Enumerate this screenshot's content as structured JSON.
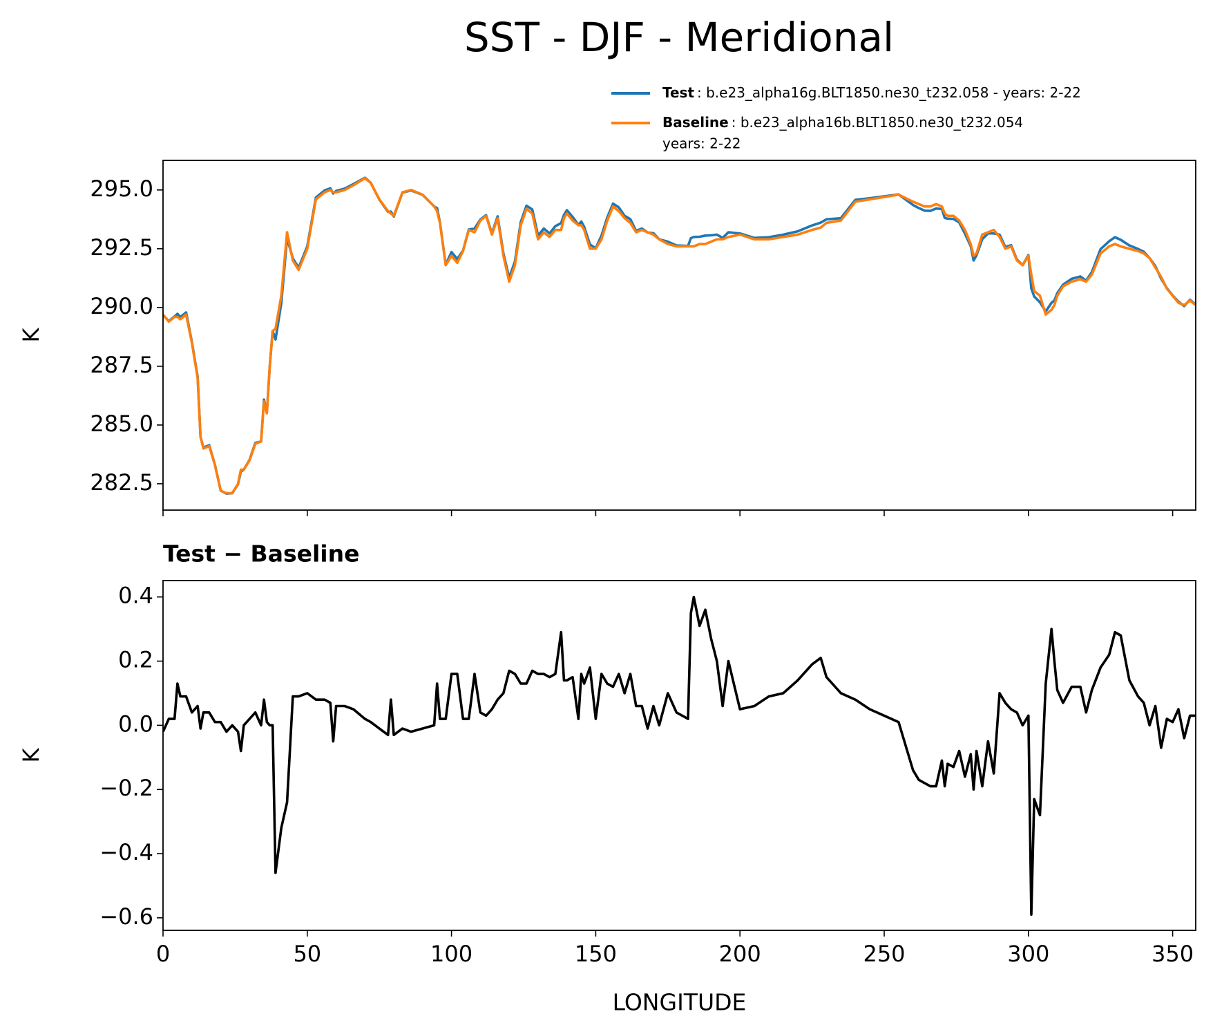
{
  "chart_data": [
    {
      "type": "line",
      "title": "SST - DJF - Meridional",
      "ylabel": "K",
      "xlim": [
        0,
        358
      ],
      "ylim": [
        281.38,
        296.26
      ],
      "yticks": [
        282.5,
        {
          "value": 285,
          "label": "285.0"
        },
        287.5,
        {
          "value": 290,
          "label": "290.0"
        },
        292.5,
        {
          "value": 295,
          "label": "295.0"
        }
      ],
      "x": [
        0,
        2,
        4,
        5,
        6,
        8,
        10,
        12,
        13,
        14,
        16,
        18,
        20,
        22,
        24,
        26,
        27,
        28,
        30,
        32,
        34,
        35,
        36,
        37,
        38,
        39,
        41,
        43,
        45,
        47,
        50,
        53,
        56,
        58,
        59,
        60,
        63,
        66,
        70,
        72,
        75,
        78,
        79,
        80,
        83,
        86,
        90,
        94,
        95,
        96,
        98,
        100,
        102,
        104,
        106,
        108,
        110,
        112,
        114,
        116,
        118,
        120,
        122,
        124,
        126,
        128,
        130,
        132,
        134,
        136,
        138,
        139,
        140,
        142,
        144,
        145,
        146,
        148,
        150,
        152,
        154,
        156,
        158,
        160,
        162,
        164,
        166,
        168,
        170,
        172,
        175,
        178,
        180,
        182,
        183,
        184,
        186,
        188,
        190,
        192,
        194,
        196,
        200,
        205,
        210,
        215,
        220,
        225,
        228,
        230,
        235,
        240,
        245,
        250,
        255,
        260,
        262,
        264,
        266,
        268,
        270,
        271,
        272,
        274,
        276,
        278,
        280,
        281,
        282,
        284,
        286,
        288,
        290,
        292,
        294,
        296,
        298,
        300,
        301,
        302,
        304,
        306,
        308,
        309,
        310,
        312,
        315,
        318,
        320,
        322,
        325,
        328,
        330,
        332,
        335,
        338,
        340,
        342,
        344,
        346,
        348,
        350,
        352,
        354,
        356,
        358
      ],
      "series": [
        {
          "name": "Test",
          "description": [
            ": b.e23_alpha16g.BLT1850.ne30_t232.058 - years: 2-22"
          ],
          "color": "#1f77b4",
          "values": [
            289.68,
            289.42,
            289.62,
            289.73,
            289.59,
            289.79,
            288.54,
            287.06,
            284.49,
            284.04,
            284.14,
            283.31,
            282.21,
            282.08,
            282.1,
            282.48,
            283.02,
            283.1,
            283.52,
            284.24,
            284.3,
            286.08,
            285.51,
            287.5,
            289.0,
            288.64,
            290.18,
            292.96,
            292.09,
            291.69,
            292.6,
            294.68,
            294.98,
            295.07,
            294.85,
            294.96,
            295.06,
            295.25,
            295.52,
            295.31,
            294.59,
            294.07,
            294.08,
            293.87,
            294.89,
            294.98,
            294.79,
            294.3,
            294.23,
            293.62,
            291.82,
            292.36,
            292.06,
            292.42,
            293.32,
            293.36,
            293.74,
            293.93,
            293.15,
            293.88,
            292.3,
            291.27,
            291.96,
            293.63,
            294.33,
            294.17,
            293.06,
            293.36,
            293.15,
            293.46,
            293.59,
            293.94,
            294.14,
            293.85,
            293.52,
            293.66,
            293.43,
            292.68,
            292.52,
            293.06,
            293.83,
            294.42,
            294.26,
            293.9,
            293.76,
            293.26,
            293.36,
            293.19,
            293.16,
            292.9,
            292.8,
            292.64,
            292.63,
            292.62,
            292.95,
            293.0,
            293.01,
            293.06,
            293.07,
            293.1,
            292.96,
            293.2,
            293.15,
            292.96,
            292.99,
            293.1,
            293.24,
            293.49,
            293.61,
            293.75,
            293.8,
            294.58,
            294.65,
            294.73,
            294.81,
            294.36,
            294.23,
            294.12,
            294.11,
            294.21,
            294.19,
            293.81,
            293.78,
            293.77,
            293.62,
            293.14,
            292.61,
            292.0,
            292.22,
            292.91,
            293.15,
            293.15,
            293.1,
            292.57,
            292.65,
            292.04,
            291.8,
            292.23,
            290.81,
            290.47,
            290.22,
            289.83,
            290.2,
            290.3,
            290.61,
            290.97,
            291.22,
            291.32,
            291.14,
            291.51,
            292.48,
            292.82,
            292.99,
            292.88,
            292.64,
            292.49,
            292.37,
            292.1,
            291.76,
            291.23,
            290.82,
            290.51,
            290.25,
            290.06,
            290.33,
            290.13
          ]
        },
        {
          "name": "Baseline",
          "description": [
            ": b.e23_alpha16b.BLT1850.ne30_t232.054",
            "years: 2-22"
          ],
          "color": "#ff7f0e",
          "values": [
            289.7,
            289.4,
            289.6,
            289.6,
            289.5,
            289.7,
            288.5,
            287,
            284.5,
            284,
            284.1,
            283.3,
            282.2,
            282.1,
            282.1,
            282.5,
            283.1,
            283.1,
            283.5,
            284.2,
            284.3,
            286,
            285.5,
            287.5,
            289,
            289.1,
            290.5,
            293.2,
            292,
            291.6,
            292.5,
            294.6,
            294.9,
            295,
            294.9,
            294.9,
            295,
            295.2,
            295.5,
            295.3,
            294.6,
            294.1,
            294.0,
            293.9,
            294.9,
            295,
            294.8,
            294.3,
            294.1,
            293.6,
            291.8,
            292.2,
            291.9,
            292.4,
            293.3,
            293.2,
            293.7,
            293.9,
            293.1,
            293.8,
            292.2,
            291.1,
            291.8,
            293.5,
            294.2,
            294.0,
            292.9,
            293.2,
            293.0,
            293.3,
            293.3,
            293.8,
            294.0,
            293.7,
            293.5,
            293.5,
            293.3,
            292.5,
            292.5,
            292.9,
            293.7,
            294.3,
            294.1,
            293.8,
            293.6,
            293.2,
            293.3,
            293.2,
            293.1,
            292.9,
            292.7,
            292.6,
            292.6,
            292.6,
            292.6,
            292.6,
            292.7,
            292.7,
            292.8,
            292.9,
            292.9,
            293.0,
            293.1,
            292.9,
            292.9,
            293.0,
            293.1,
            293.3,
            293.4,
            293.6,
            293.7,
            294.5,
            294.6,
            294.7,
            294.8,
            294.5,
            294.4,
            294.3,
            294.3,
            294.4,
            294.3,
            294.0,
            293.9,
            293.9,
            293.7,
            293.3,
            292.7,
            292.2,
            292.3,
            293.1,
            293.2,
            293.3,
            293.0,
            292.5,
            292.6,
            292.0,
            291.8,
            292.2,
            291.4,
            290.7,
            290.5,
            289.7,
            289.9,
            290.1,
            290.5,
            290.9,
            291.1,
            291.2,
            291.1,
            291.4,
            292.3,
            292.6,
            292.7,
            292.6,
            292.5,
            292.4,
            292.3,
            292.1,
            291.7,
            291.3,
            290.8,
            290.5,
            290.2,
            290.1,
            290.3,
            290.1
          ]
        }
      ]
    },
    {
      "type": "line",
      "title": "Test − Baseline",
      "ylabel": "K",
      "xlabel": "LONGITUDE",
      "xlim": [
        0,
        358
      ],
      "xticks": [
        0,
        50,
        100,
        150,
        200,
        250,
        300,
        350
      ],
      "ylim": [
        -0.639,
        0.451
      ],
      "yticks": [
        {
          "value": -0.6,
          "label": "−0.6"
        },
        {
          "value": -0.4,
          "label": "−0.4"
        },
        {
          "value": -0.2,
          "label": "−0.2"
        },
        {
          "value": 0,
          "label": "0.0"
        },
        0.2,
        0.4
      ],
      "x": [
        0,
        2,
        4,
        5,
        6,
        8,
        10,
        12,
        13,
        14,
        16,
        18,
        20,
        22,
        24,
        26,
        27,
        28,
        30,
        32,
        34,
        35,
        36,
        37,
        38,
        39,
        41,
        43,
        45,
        47,
        50,
        53,
        56,
        58,
        59,
        60,
        63,
        66,
        70,
        72,
        75,
        78,
        79,
        80,
        83,
        86,
        90,
        94,
        95,
        96,
        98,
        100,
        102,
        104,
        106,
        108,
        110,
        112,
        114,
        116,
        118,
        120,
        122,
        124,
        126,
        128,
        130,
        132,
        134,
        136,
        138,
        139,
        140,
        142,
        144,
        145,
        146,
        148,
        150,
        152,
        154,
        156,
        158,
        160,
        162,
        164,
        166,
        168,
        170,
        172,
        175,
        178,
        180,
        182,
        183,
        184,
        186,
        188,
        190,
        192,
        194,
        196,
        200,
        205,
        210,
        215,
        220,
        225,
        228,
        230,
        235,
        240,
        245,
        250,
        255,
        260,
        262,
        264,
        266,
        268,
        270,
        271,
        272,
        274,
        276,
        278,
        280,
        281,
        282,
        284,
        286,
        288,
        290,
        292,
        294,
        296,
        298,
        300,
        301,
        302,
        304,
        306,
        308,
        309,
        310,
        312,
        315,
        318,
        320,
        322,
        325,
        328,
        330,
        332,
        335,
        338,
        340,
        342,
        344,
        346,
        348,
        350,
        352,
        354,
        356,
        358
      ],
      "series": [
        {
          "color": "#000000",
          "values": [
            -0.02,
            0.02,
            0.02,
            0.13,
            0.09,
            0.09,
            0.04,
            0.06,
            -0.01,
            0.04,
            0.04,
            0.01,
            0.01,
            -0.02,
            0.0,
            -0.02,
            -0.08,
            0.0,
            0.02,
            0.04,
            0.0,
            0.08,
            0.01,
            0.0,
            0.0,
            -0.46,
            -0.32,
            -0.24,
            0.09,
            0.09,
            0.1,
            0.08,
            0.08,
            0.07,
            -0.05,
            0.06,
            0.06,
            0.05,
            0.02,
            0.01,
            -0.01,
            -0.03,
            0.08,
            -0.03,
            -0.01,
            -0.02,
            -0.01,
            0.0,
            0.13,
            0.02,
            0.02,
            0.16,
            0.16,
            0.02,
            0.02,
            0.16,
            0.04,
            0.03,
            0.05,
            0.08,
            0.1,
            0.17,
            0.16,
            0.13,
            0.13,
            0.17,
            0.16,
            0.16,
            0.15,
            0.16,
            0.29,
            0.14,
            0.14,
            0.15,
            0.02,
            0.16,
            0.13,
            0.18,
            0.02,
            0.16,
            0.13,
            0.12,
            0.16,
            0.1,
            0.16,
            0.06,
            0.06,
            -0.01,
            0.06,
            0.0,
            0.1,
            0.04,
            0.03,
            0.02,
            0.35,
            0.4,
            0.31,
            0.36,
            0.27,
            0.2,
            0.06,
            0.2,
            0.05,
            0.06,
            0.09,
            0.1,
            0.14,
            0.19,
            0.21,
            0.15,
            0.1,
            0.08,
            0.05,
            0.03,
            0.01,
            -0.14,
            -0.17,
            -0.18,
            -0.19,
            -0.19,
            -0.11,
            -0.19,
            -0.12,
            -0.13,
            -0.08,
            -0.16,
            -0.09,
            -0.2,
            -0.08,
            -0.19,
            -0.05,
            -0.15,
            0.1,
            0.07,
            0.05,
            0.04,
            0.0,
            0.03,
            -0.59,
            -0.23,
            -0.28,
            0.13,
            0.3,
            0.2,
            0.11,
            0.07,
            0.12,
            0.12,
            0.04,
            0.11,
            0.18,
            0.22,
            0.29,
            0.28,
            0.14,
            0.09,
            0.07,
            0.0,
            0.06,
            -0.07,
            0.02,
            0.01,
            0.05,
            -0.04,
            0.03,
            0.03
          ]
        }
      ]
    }
  ]
}
